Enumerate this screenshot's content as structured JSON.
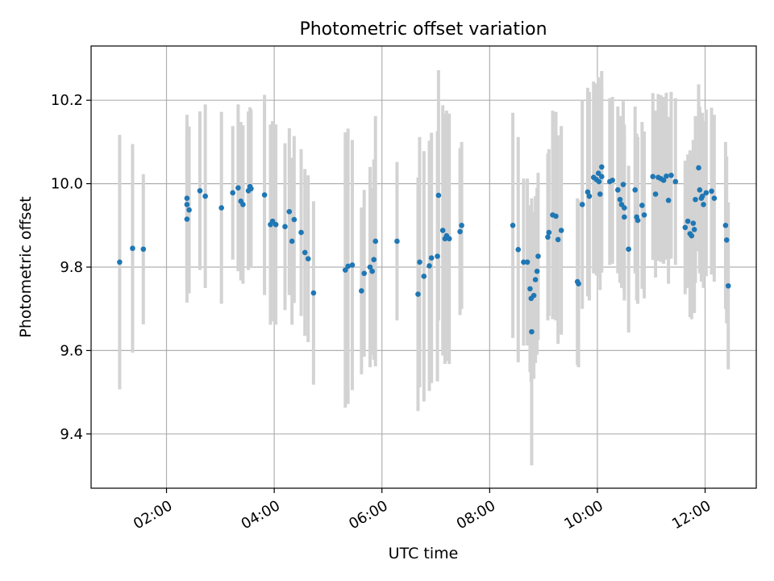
{
  "chart_data": {
    "type": "scatter",
    "title": "Photometric offset variation",
    "xlabel": "UTC time",
    "ylabel": "Photometric offset",
    "xlim": [
      0.6,
      12.95
    ],
    "ylim": [
      9.27,
      10.33
    ],
    "grid": true,
    "x_ticks": [
      {
        "value": 2,
        "label": "02:00"
      },
      {
        "value": 4,
        "label": "04:00"
      },
      {
        "value": 6,
        "label": "06:00"
      },
      {
        "value": 8,
        "label": "08:00"
      },
      {
        "value": 10,
        "label": "10:00"
      },
      {
        "value": 12,
        "label": "12:00"
      }
    ],
    "y_ticks": [
      {
        "value": 9.4,
        "label": "9.4"
      },
      {
        "value": 9.6,
        "label": "9.6"
      },
      {
        "value": 9.8,
        "label": "9.8"
      },
      {
        "value": 10.0,
        "label": "10.0"
      },
      {
        "value": 10.2,
        "label": "10.2"
      }
    ],
    "marker_color": "#1f77b4",
    "errorbar_color": "#d3d3d3",
    "points": [
      {
        "x": 1.13,
        "y": 9.812,
        "err": 0.305
      },
      {
        "x": 1.37,
        "y": 9.845,
        "err": 0.25
      },
      {
        "x": 1.57,
        "y": 9.843,
        "err": 0.18
      },
      {
        "x": 2.38,
        "y": 9.965,
        "err": 0.2
      },
      {
        "x": 2.38,
        "y": 9.95,
        "err": 0.2
      },
      {
        "x": 2.38,
        "y": 9.915,
        "err": 0.2
      },
      {
        "x": 2.42,
        "y": 9.937,
        "err": 0.2
      },
      {
        "x": 2.62,
        "y": 9.983,
        "err": 0.19
      },
      {
        "x": 2.72,
        "y": 9.97,
        "err": 0.22
      },
      {
        "x": 3.02,
        "y": 9.942,
        "err": 0.23
      },
      {
        "x": 3.23,
        "y": 9.978,
        "err": 0.16
      },
      {
        "x": 3.33,
        "y": 9.99,
        "err": 0.2
      },
      {
        "x": 3.38,
        "y": 9.958,
        "err": 0.19
      },
      {
        "x": 3.42,
        "y": 9.95,
        "err": 0.19
      },
      {
        "x": 3.52,
        "y": 9.983,
        "err": 0.19
      },
      {
        "x": 3.55,
        "y": 9.993,
        "err": 0.19
      },
      {
        "x": 3.57,
        "y": 9.988,
        "err": 0.19
      },
      {
        "x": 3.82,
        "y": 9.973,
        "err": 0.24
      },
      {
        "x": 3.93,
        "y": 9.902,
        "err": 0.24
      },
      {
        "x": 3.97,
        "y": 9.91,
        "err": 0.24
      },
      {
        "x": 4.03,
        "y": 9.902,
        "err": 0.24
      },
      {
        "x": 4.2,
        "y": 9.897,
        "err": 0.2
      },
      {
        "x": 4.28,
        "y": 9.933,
        "err": 0.2
      },
      {
        "x": 4.33,
        "y": 9.862,
        "err": 0.2
      },
      {
        "x": 4.37,
        "y": 9.914,
        "err": 0.2
      },
      {
        "x": 4.5,
        "y": 9.883,
        "err": 0.2
      },
      {
        "x": 4.57,
        "y": 9.835,
        "err": 0.2
      },
      {
        "x": 4.63,
        "y": 9.82,
        "err": 0.2
      },
      {
        "x": 4.73,
        "y": 9.738,
        "err": 0.22
      },
      {
        "x": 5.32,
        "y": 9.793,
        "err": 0.33
      },
      {
        "x": 5.37,
        "y": 9.802,
        "err": 0.33
      },
      {
        "x": 5.45,
        "y": 9.805,
        "err": 0.3
      },
      {
        "x": 5.62,
        "y": 9.743,
        "err": 0.2
      },
      {
        "x": 5.67,
        "y": 9.785,
        "err": 0.2
      },
      {
        "x": 5.78,
        "y": 9.8,
        "err": 0.24
      },
      {
        "x": 5.82,
        "y": 9.79,
        "err": 0.2
      },
      {
        "x": 5.85,
        "y": 9.818,
        "err": 0.24
      },
      {
        "x": 5.88,
        "y": 9.862,
        "err": 0.3
      },
      {
        "x": 6.28,
        "y": 9.862,
        "err": 0.19
      },
      {
        "x": 6.67,
        "y": 9.735,
        "err": 0.28
      },
      {
        "x": 6.7,
        "y": 9.812,
        "err": 0.3
      },
      {
        "x": 6.78,
        "y": 9.778,
        "err": 0.3
      },
      {
        "x": 6.88,
        "y": 9.803,
        "err": 0.3
      },
      {
        "x": 6.92,
        "y": 9.822,
        "err": 0.3
      },
      {
        "x": 7.03,
        "y": 9.826,
        "err": 0.3
      },
      {
        "x": 7.05,
        "y": 9.972,
        "err": 0.3
      },
      {
        "x": 7.13,
        "y": 9.888,
        "err": 0.3
      },
      {
        "x": 7.17,
        "y": 9.868,
        "err": 0.3
      },
      {
        "x": 7.2,
        "y": 9.875,
        "err": 0.3
      },
      {
        "x": 7.25,
        "y": 9.868,
        "err": 0.3
      },
      {
        "x": 7.45,
        "y": 9.885,
        "err": 0.2
      },
      {
        "x": 7.48,
        "y": 9.9,
        "err": 0.2
      },
      {
        "x": 8.43,
        "y": 9.9,
        "err": 0.27
      },
      {
        "x": 8.53,
        "y": 9.842,
        "err": 0.27
      },
      {
        "x": 8.63,
        "y": 9.812,
        "err": 0.2
      },
      {
        "x": 8.7,
        "y": 9.812,
        "err": 0.2
      },
      {
        "x": 8.75,
        "y": 9.748,
        "err": 0.2
      },
      {
        "x": 8.77,
        "y": 9.725,
        "err": 0.2
      },
      {
        "x": 8.78,
        "y": 9.645,
        "err": 0.32
      },
      {
        "x": 8.82,
        "y": 9.732,
        "err": 0.2
      },
      {
        "x": 8.85,
        "y": 9.77,
        "err": 0.2
      },
      {
        "x": 8.88,
        "y": 9.79,
        "err": 0.2
      },
      {
        "x": 8.9,
        "y": 9.826,
        "err": 0.2
      },
      {
        "x": 9.08,
        "y": 9.872,
        "err": 0.2
      },
      {
        "x": 9.1,
        "y": 9.883,
        "err": 0.2
      },
      {
        "x": 9.17,
        "y": 9.925,
        "err": 0.25
      },
      {
        "x": 9.23,
        "y": 9.922,
        "err": 0.25
      },
      {
        "x": 9.27,
        "y": 9.866,
        "err": 0.25
      },
      {
        "x": 9.33,
        "y": 9.888,
        "err": 0.25
      },
      {
        "x": 9.63,
        "y": 9.765,
        "err": 0.2
      },
      {
        "x": 9.65,
        "y": 9.76,
        "err": 0.2
      },
      {
        "x": 9.72,
        "y": 9.95,
        "err": 0.25
      },
      {
        "x": 9.82,
        "y": 9.98,
        "err": 0.25
      },
      {
        "x": 9.85,
        "y": 9.97,
        "err": 0.25
      },
      {
        "x": 9.93,
        "y": 10.015,
        "err": 0.23
      },
      {
        "x": 9.98,
        "y": 10.01,
        "err": 0.23
      },
      {
        "x": 10.02,
        "y": 10.025,
        "err": 0.23
      },
      {
        "x": 10.03,
        "y": 10.005,
        "err": 0.23
      },
      {
        "x": 10.05,
        "y": 9.975,
        "err": 0.23
      },
      {
        "x": 10.08,
        "y": 10.017,
        "err": 0.23
      },
      {
        "x": 10.08,
        "y": 10.04,
        "err": 0.23
      },
      {
        "x": 10.23,
        "y": 10.005,
        "err": 0.2
      },
      {
        "x": 10.28,
        "y": 10.008,
        "err": 0.2
      },
      {
        "x": 10.38,
        "y": 9.985,
        "err": 0.2
      },
      {
        "x": 10.42,
        "y": 9.962,
        "err": 0.2
      },
      {
        "x": 10.45,
        "y": 9.95,
        "err": 0.2
      },
      {
        "x": 10.48,
        "y": 9.998,
        "err": 0.2
      },
      {
        "x": 10.5,
        "y": 9.942,
        "err": 0.2
      },
      {
        "x": 10.5,
        "y": 9.92,
        "err": 0.2
      },
      {
        "x": 10.58,
        "y": 9.843,
        "err": 0.2
      },
      {
        "x": 10.7,
        "y": 9.985,
        "err": 0.2
      },
      {
        "x": 10.73,
        "y": 9.92,
        "err": 0.2
      },
      {
        "x": 10.75,
        "y": 9.912,
        "err": 0.2
      },
      {
        "x": 10.83,
        "y": 9.948,
        "err": 0.2
      },
      {
        "x": 10.87,
        "y": 9.925,
        "err": 0.2
      },
      {
        "x": 11.03,
        "y": 10.017,
        "err": 0.2
      },
      {
        "x": 11.08,
        "y": 9.975,
        "err": 0.2
      },
      {
        "x": 11.13,
        "y": 10.015,
        "err": 0.2
      },
      {
        "x": 11.18,
        "y": 10.012,
        "err": 0.2
      },
      {
        "x": 11.23,
        "y": 10.008,
        "err": 0.2
      },
      {
        "x": 11.28,
        "y": 10.018,
        "err": 0.2
      },
      {
        "x": 11.32,
        "y": 9.96,
        "err": 0.2
      },
      {
        "x": 11.37,
        "y": 10.02,
        "err": 0.2
      },
      {
        "x": 11.45,
        "y": 10.005,
        "err": 0.2
      },
      {
        "x": 11.63,
        "y": 9.895,
        "err": 0.16
      },
      {
        "x": 11.68,
        "y": 9.91,
        "err": 0.16
      },
      {
        "x": 11.72,
        "y": 9.88,
        "err": 0.2
      },
      {
        "x": 11.75,
        "y": 9.875,
        "err": 0.2
      },
      {
        "x": 11.78,
        "y": 9.905,
        "err": 0.2
      },
      {
        "x": 11.8,
        "y": 9.89,
        "err": 0.2
      },
      {
        "x": 11.82,
        "y": 9.962,
        "err": 0.2
      },
      {
        "x": 11.88,
        "y": 10.038,
        "err": 0.2
      },
      {
        "x": 11.9,
        "y": 9.985,
        "err": 0.2
      },
      {
        "x": 11.93,
        "y": 9.965,
        "err": 0.2
      },
      {
        "x": 11.95,
        "y": 9.97,
        "err": 0.2
      },
      {
        "x": 11.97,
        "y": 9.95,
        "err": 0.2
      },
      {
        "x": 12.02,
        "y": 9.978,
        "err": 0.2
      },
      {
        "x": 12.12,
        "y": 9.982,
        "err": 0.2
      },
      {
        "x": 12.17,
        "y": 9.965,
        "err": 0.2
      },
      {
        "x": 12.38,
        "y": 9.9,
        "err": 0.2
      },
      {
        "x": 12.4,
        "y": 9.865,
        "err": 0.2
      },
      {
        "x": 12.43,
        "y": 9.755,
        "err": 0.2
      }
    ]
  }
}
